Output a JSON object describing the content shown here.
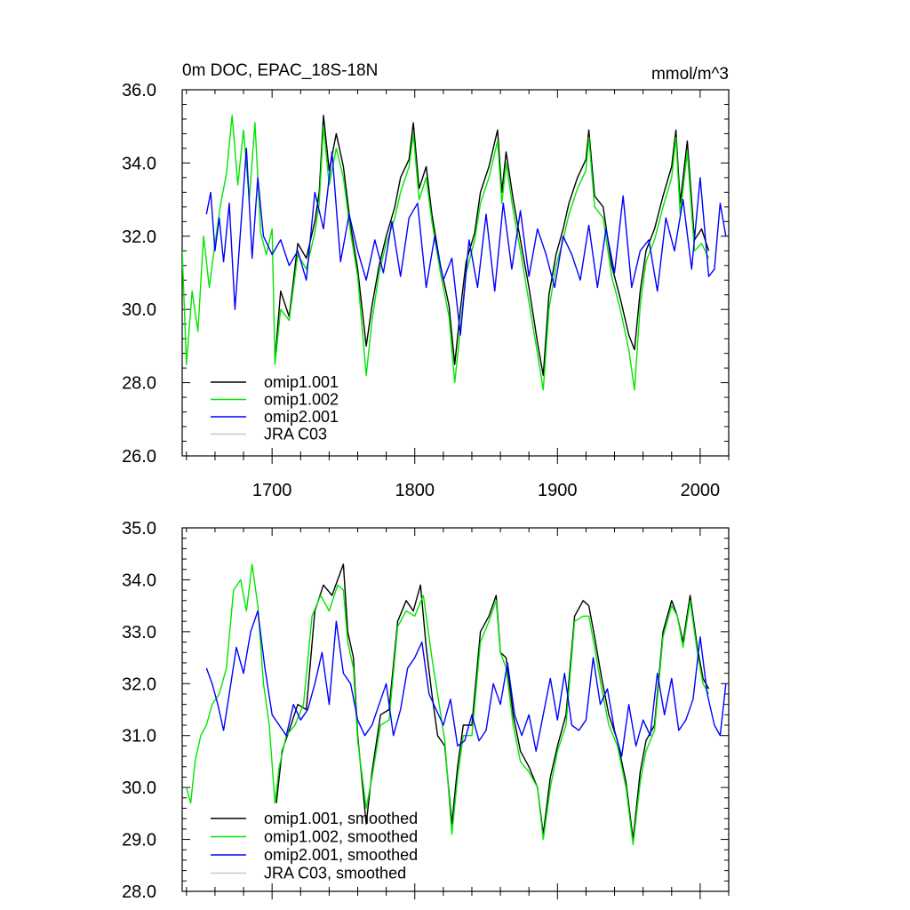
{
  "chart_data": [
    {
      "type": "line",
      "title": "0m DOC, EPAC_18S-18N",
      "units": "mmol/m^3",
      "xlim": [
        1637,
        2020
      ],
      "ylim": [
        26,
        36
      ],
      "x_ticks": [
        1700,
        1800,
        1900,
        2000
      ],
      "x_tick_labels": [
        "1700",
        "1800",
        "1900",
        "2000"
      ],
      "y_ticks": [
        26,
        28,
        30,
        32,
        34,
        36
      ],
      "y_tick_labels": [
        "26.0",
        "28.0",
        "30.0",
        "32.0",
        "34.0",
        "36.0"
      ],
      "legend_position": "bottom-left",
      "series": [
        {
          "name": "omip1.001",
          "color": "#000000",
          "x": [
            1702,
            1706,
            1712,
            1718,
            1724,
            1730,
            1733,
            1736,
            1740,
            1745,
            1750,
            1755,
            1760,
            1766,
            1770,
            1775,
            1780,
            1786,
            1790,
            1796,
            1799,
            1803,
            1808,
            1812,
            1818,
            1824,
            1828,
            1832,
            1836,
            1842,
            1846,
            1852,
            1858,
            1861,
            1864,
            1869,
            1874,
            1880,
            1886,
            1890,
            1894,
            1899,
            1904,
            1908,
            1914,
            1920,
            1922,
            1926,
            1932,
            1938,
            1944,
            1950,
            1954,
            1958,
            1962,
            1968,
            1974,
            1980,
            1983,
            1986,
            1991,
            1996,
            2001,
            2006
          ],
          "values": [
            28.6,
            30.5,
            29.8,
            31.8,
            31.4,
            32.4,
            33.2,
            35.3,
            33.8,
            34.8,
            33.9,
            32.3,
            31.1,
            29.0,
            30.1,
            31.2,
            32.0,
            32.8,
            33.6,
            34.1,
            35.1,
            33.3,
            33.9,
            32.6,
            31.2,
            30.1,
            28.5,
            30.0,
            31.3,
            32.1,
            33.2,
            33.9,
            34.9,
            33.2,
            34.3,
            33.0,
            31.9,
            30.6,
            29.1,
            28.2,
            30.4,
            31.5,
            32.2,
            32.9,
            33.6,
            34.1,
            34.9,
            33.1,
            32.8,
            31.2,
            30.3,
            29.3,
            28.9,
            30.5,
            31.6,
            32.2,
            33.1,
            33.9,
            34.9,
            32.9,
            34.6,
            31.9,
            32.2,
            31.6
          ]
        },
        {
          "name": "omip1.002",
          "color": "#00e600",
          "x": [
            1637,
            1640,
            1644,
            1648,
            1652,
            1656,
            1660,
            1664,
            1668,
            1672,
            1676,
            1680,
            1684,
            1688,
            1692,
            1696,
            1700,
            1702,
            1706,
            1712,
            1718,
            1724,
            1730,
            1733,
            1736,
            1740,
            1745,
            1750,
            1755,
            1760,
            1766,
            1770,
            1775,
            1780,
            1786,
            1790,
            1796,
            1799,
            1803,
            1808,
            1812,
            1818,
            1824,
            1828,
            1832,
            1836,
            1842,
            1846,
            1852,
            1858,
            1861,
            1864,
            1869,
            1874,
            1880,
            1886,
            1890,
            1894,
            1899,
            1904,
            1908,
            1914,
            1920,
            1922,
            1926,
            1932,
            1938,
            1944,
            1950,
            1954,
            1958,
            1962,
            1968,
            1974,
            1980,
            1983,
            1986,
            1991,
            1996,
            2001,
            2006
          ],
          "values": [
            31.6,
            28.5,
            30.5,
            29.4,
            32.0,
            30.6,
            31.8,
            32.9,
            33.7,
            35.3,
            33.4,
            34.9,
            33.0,
            35.1,
            32.1,
            31.5,
            32.2,
            28.5,
            30.0,
            29.7,
            31.5,
            31.1,
            32.1,
            32.9,
            35.0,
            33.4,
            34.4,
            33.6,
            32.1,
            30.9,
            28.2,
            29.7,
            31.0,
            31.8,
            32.5,
            33.2,
            33.9,
            34.8,
            33.0,
            33.6,
            32.4,
            31.0,
            29.8,
            28.0,
            29.5,
            31.0,
            31.9,
            32.9,
            33.6,
            34.6,
            32.9,
            34.0,
            32.7,
            31.6,
            30.2,
            28.8,
            27.8,
            30.0,
            31.2,
            31.9,
            32.6,
            33.3,
            33.8,
            34.7,
            32.8,
            32.5,
            30.9,
            30.0,
            28.9,
            27.8,
            30.1,
            31.3,
            31.9,
            32.8,
            33.6,
            34.7,
            32.6,
            34.3,
            31.6,
            31.8,
            31.4
          ]
        },
        {
          "name": "omip2.001",
          "color": "#0000ff",
          "x": [
            1654,
            1657,
            1660,
            1663,
            1666,
            1670,
            1674,
            1678,
            1682,
            1686,
            1690,
            1694,
            1700,
            1706,
            1712,
            1718,
            1724,
            1730,
            1736,
            1742,
            1748,
            1754,
            1760,
            1766,
            1772,
            1778,
            1784,
            1790,
            1796,
            1802,
            1808,
            1814,
            1820,
            1826,
            1832,
            1838,
            1844,
            1850,
            1856,
            1862,
            1868,
            1874,
            1880,
            1886,
            1892,
            1898,
            1904,
            1910,
            1916,
            1922,
            1928,
            1934,
            1940,
            1946,
            1952,
            1958,
            1964,
            1970,
            1976,
            1982,
            1988,
            1994,
            2000,
            2006,
            2010,
            2014,
            2018
          ],
          "values": [
            32.6,
            33.2,
            31.6,
            32.5,
            31.3,
            32.9,
            30.0,
            32.2,
            34.4,
            31.4,
            33.6,
            32.0,
            31.5,
            31.9,
            31.2,
            31.6,
            30.8,
            33.2,
            32.2,
            34.3,
            31.3,
            32.6,
            31.6,
            30.8,
            31.9,
            31.0,
            32.4,
            30.9,
            32.5,
            32.9,
            30.6,
            32.0,
            30.8,
            31.4,
            29.3,
            31.9,
            30.6,
            32.6,
            30.5,
            32.9,
            31.1,
            32.7,
            30.9,
            32.2,
            31.5,
            30.6,
            32.0,
            31.5,
            30.8,
            32.3,
            30.6,
            32.2,
            31.0,
            33.1,
            30.6,
            31.6,
            31.9,
            30.5,
            32.5,
            31.6,
            33.0,
            31.1,
            33.6,
            30.9,
            31.1,
            32.9,
            32.0
          ]
        },
        {
          "name": "JRA C03",
          "color": "#c8c8c8",
          "x": [],
          "values": []
        }
      ]
    },
    {
      "type": "line",
      "title": "",
      "xlim": [
        1637,
        2020
      ],
      "ylim": [
        28,
        35
      ],
      "x_ticks": [
        1700,
        1800,
        1900,
        2000
      ],
      "y_ticks": [
        28,
        29,
        30,
        31,
        32,
        33,
        34,
        35
      ],
      "y_tick_labels": [
        "28.0",
        "29.0",
        "30.0",
        "31.0",
        "32.0",
        "33.0",
        "34.0",
        "35.0"
      ],
      "legend_position": "bottom-left",
      "series": [
        {
          "name": "omip1.001, smoothed",
          "color": "#000000",
          "x": [
            1703,
            1707,
            1712,
            1718,
            1724,
            1730,
            1736,
            1742,
            1746,
            1750,
            1753,
            1757,
            1760,
            1766,
            1770,
            1776,
            1782,
            1788,
            1794,
            1799,
            1804,
            1808,
            1812,
            1816,
            1821,
            1826,
            1830,
            1834,
            1840,
            1846,
            1852,
            1857,
            1860,
            1864,
            1869,
            1874,
            1880,
            1886,
            1890,
            1895,
            1900,
            1906,
            1912,
            1918,
            1922,
            1926,
            1931,
            1936,
            1942,
            1948,
            1953,
            1958,
            1962,
            1968,
            1974,
            1980,
            1984,
            1988,
            1993,
            1998,
            2002,
            2006
          ],
          "values": [
            29.7,
            30.7,
            31.1,
            31.6,
            31.5,
            33.4,
            33.9,
            33.7,
            34.0,
            34.3,
            33.0,
            32.5,
            31.0,
            29.3,
            30.3,
            31.4,
            31.5,
            33.2,
            33.6,
            33.4,
            33.9,
            32.7,
            31.8,
            31.0,
            30.8,
            29.3,
            30.4,
            31.2,
            31.2,
            33.0,
            33.3,
            33.7,
            32.6,
            32.5,
            31.4,
            30.7,
            30.4,
            30.0,
            29.1,
            30.2,
            30.8,
            31.4,
            33.3,
            33.6,
            33.5,
            32.9,
            32.1,
            31.4,
            30.9,
            30.1,
            29.0,
            30.3,
            30.9,
            31.2,
            33.0,
            33.6,
            33.3,
            32.8,
            33.7,
            32.7,
            32.1,
            31.9
          ]
        },
        {
          "name": "omip1.002, smoothed",
          "color": "#00e600",
          "x": [
            1640,
            1643,
            1646,
            1650,
            1654,
            1658,
            1663,
            1668,
            1673,
            1678,
            1682,
            1686,
            1690,
            1694,
            1698,
            1702,
            1705,
            1710,
            1716,
            1722,
            1728,
            1734,
            1740,
            1746,
            1750,
            1753,
            1757,
            1760,
            1766,
            1770,
            1776,
            1782,
            1788,
            1794,
            1800,
            1806,
            1812,
            1816,
            1821,
            1826,
            1830,
            1834,
            1840,
            1846,
            1852,
            1857,
            1860,
            1864,
            1869,
            1874,
            1880,
            1886,
            1890,
            1895,
            1900,
            1906,
            1912,
            1918,
            1922,
            1926,
            1931,
            1936,
            1942,
            1948,
            1953,
            1958,
            1962,
            1968,
            1974,
            1980,
            1984,
            1988,
            1993,
            1998,
            2002,
            2006
          ],
          "values": [
            30.0,
            29.7,
            30.5,
            31.0,
            31.2,
            31.6,
            31.8,
            32.3,
            33.8,
            34.0,
            33.4,
            34.3,
            33.5,
            32.0,
            31.2,
            29.7,
            30.4,
            31.0,
            31.2,
            31.6,
            33.3,
            33.7,
            33.4,
            33.9,
            33.8,
            32.8,
            32.3,
            30.9,
            29.6,
            30.2,
            31.2,
            31.3,
            33.1,
            33.4,
            33.3,
            33.7,
            32.5,
            31.8,
            30.9,
            29.1,
            30.2,
            31.0,
            31.0,
            32.8,
            33.2,
            33.6,
            32.6,
            32.3,
            31.2,
            30.5,
            30.3,
            30.0,
            29.0,
            30.0,
            30.7,
            31.2,
            33.2,
            33.3,
            33.3,
            32.7,
            31.9,
            31.2,
            30.8,
            30.0,
            28.9,
            30.1,
            30.7,
            31.1,
            32.9,
            33.5,
            33.3,
            32.7,
            33.6,
            32.6,
            32.0,
            31.8
          ]
        },
        {
          "name": "omip2.001, smoothed",
          "color": "#0000ff",
          "x": [
            1654,
            1658,
            1662,
            1666,
            1670,
            1675,
            1680,
            1685,
            1690,
            1695,
            1700,
            1705,
            1710,
            1715,
            1720,
            1725,
            1730,
            1735,
            1740,
            1745,
            1750,
            1755,
            1760,
            1765,
            1770,
            1775,
            1780,
            1785,
            1790,
            1795,
            1800,
            1805,
            1810,
            1815,
            1820,
            1825,
            1830,
            1835,
            1840,
            1845,
            1850,
            1855,
            1860,
            1865,
            1870,
            1875,
            1880,
            1885,
            1890,
            1895,
            1900,
            1905,
            1910,
            1915,
            1920,
            1925,
            1930,
            1935,
            1940,
            1945,
            1950,
            1955,
            1960,
            1965,
            1970,
            1975,
            1980,
            1985,
            1990,
            1995,
            2000,
            2005,
            2010,
            2014,
            2018
          ],
          "values": [
            32.3,
            32.0,
            31.6,
            31.1,
            31.8,
            32.7,
            32.2,
            33.0,
            33.4,
            32.3,
            31.4,
            31.2,
            31.0,
            31.6,
            31.3,
            31.5,
            32.0,
            32.6,
            31.6,
            33.2,
            32.2,
            32.0,
            31.3,
            31.0,
            31.2,
            31.6,
            32.0,
            31.0,
            31.5,
            32.3,
            32.5,
            32.8,
            31.8,
            31.5,
            31.2,
            31.7,
            30.8,
            30.9,
            31.4,
            30.9,
            31.1,
            32.0,
            31.6,
            32.4,
            31.4,
            31.0,
            31.4,
            30.7,
            31.4,
            32.1,
            31.3,
            32.2,
            31.2,
            31.1,
            31.3,
            32.5,
            31.6,
            31.9,
            31.1,
            30.6,
            31.6,
            30.8,
            31.3,
            31.0,
            32.2,
            31.4,
            32.1,
            31.1,
            31.3,
            31.7,
            32.9,
            31.8,
            31.2,
            31.0,
            32.0
          ]
        },
        {
          "name": "JRA C03, smoothed",
          "color": "#c8c8c8",
          "x": [],
          "values": []
        }
      ]
    }
  ]
}
